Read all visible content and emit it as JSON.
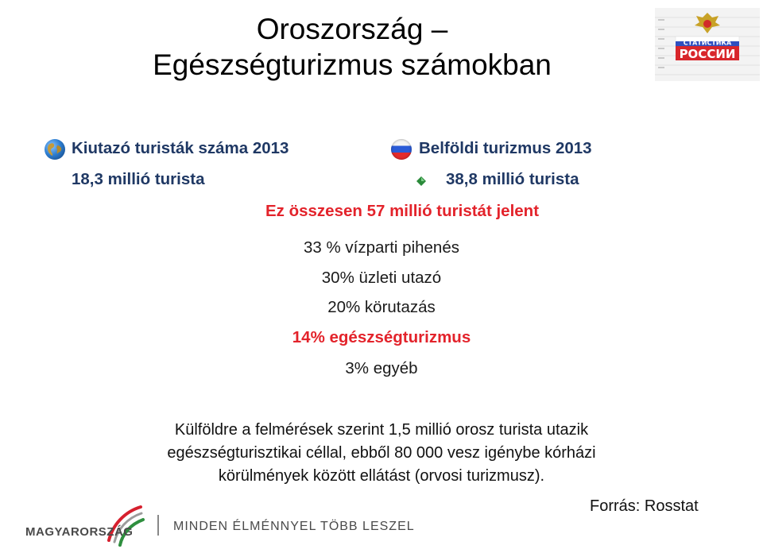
{
  "title": {
    "line1": "Oroszország –",
    "line2": "Egészségturizmus számokban"
  },
  "logo": {
    "org": "СТАТИСТИКА",
    "country": "РОССИИ"
  },
  "outbound": {
    "heading": "Kiutazó turisták száma 2013",
    "value": "18,3 millió turista",
    "icon": "globe-icon"
  },
  "domestic": {
    "heading": "Belföldi turizmus 2013",
    "value": "38,8  millió turista",
    "icon": "russian-flag-icon"
  },
  "total": "Ez összesen 57 millió turistát jelent",
  "breakdown": [
    {
      "text": "33 % vízparti pihenés",
      "highlight": false
    },
    {
      "text": "30% üzleti utazó",
      "highlight": false
    },
    {
      "text": "20% körutazás",
      "highlight": false
    },
    {
      "text": "14% egészségturizmus",
      "highlight": true
    },
    {
      "text": "3% egyéb",
      "highlight": false
    }
  ],
  "paragraph": {
    "line1": "Külföldre a felmérések szerint 1,5 millió orosz turista utazik",
    "line2": "egészségturisztikai céllal, ebből 80 000 vesz igénybe kórházi",
    "line3": "körülmények között ellátást (orvosi turizmusz)."
  },
  "source": "Forrás: Rosstat",
  "footer": {
    "brand": "MAGYARORSZÁG",
    "slogan": "MINDEN ÉLMÉNNYEL TÖBB LESZEL"
  },
  "colors": {
    "heading": "#1f3864",
    "highlight": "#e3232b"
  }
}
